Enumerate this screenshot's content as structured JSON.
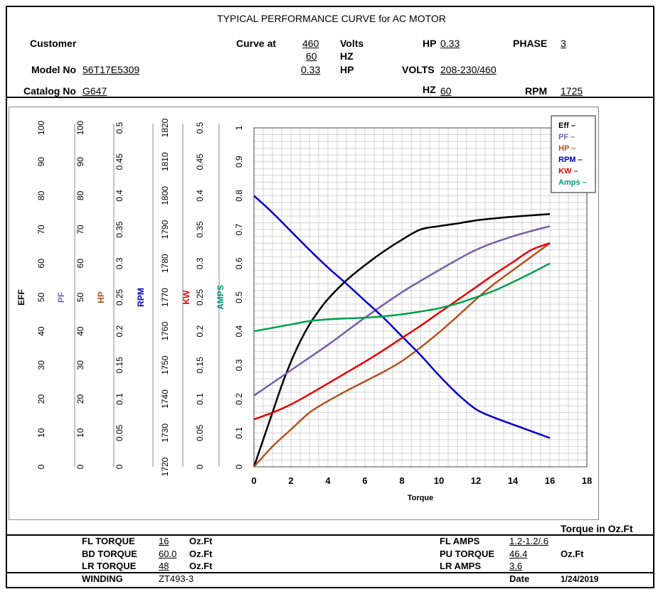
{
  "header": {
    "title": "TYPICAL PERFORMANCE CURVE for AC MOTOR",
    "customer_label": "Customer",
    "curve_at_label": "Curve at",
    "volts_value": "460",
    "volts_label": "Volts",
    "hz_value": "60",
    "hz_label": "HZ",
    "hp_value": "0.33",
    "hp_label": "HP",
    "hp_top_label": "HP",
    "hp_top_value": "0.33",
    "phase_label": "PHASE",
    "phase_value": "3",
    "model_label": "Model No",
    "model_value": "56T17E5309",
    "volts2_label": "VOLTS",
    "volts2_value": "208-230/460",
    "catalog_label": "Catalog No",
    "catalog_value": "G647",
    "hz2_label": "HZ",
    "hz2_value": "60",
    "rpm_label": "RPM",
    "rpm_value": "1725"
  },
  "chart_data": {
    "type": "line",
    "xlabel": "Torque",
    "x_caption": "Torque in Oz.Ft",
    "xlim": [
      0,
      18
    ],
    "x_ticks": [
      "0",
      "2",
      "4",
      "6",
      "8",
      "10",
      "12",
      "14",
      "16",
      "18"
    ],
    "grid": true,
    "legend_position": "top-right",
    "axes": [
      {
        "name": "EFF",
        "color": "#000000",
        "ticks": [
          "0",
          "10",
          "20",
          "30",
          "40",
          "50",
          "60",
          "70",
          "80",
          "90",
          "100"
        ],
        "label_visible": true
      },
      {
        "name": "PF",
        "color": "#7a5ea8",
        "ticks": [
          "0",
          "10",
          "20",
          "30",
          "40",
          "50",
          "60",
          "70",
          "80",
          "90",
          "100"
        ],
        "label_visible": true
      },
      {
        "name": "HP",
        "color": "#b5521b",
        "ticks": [
          "0",
          "0.05",
          "0.1",
          "0.15",
          "0.2",
          "0.25",
          "0.3",
          "0.35",
          "0.4",
          "0.45",
          "0.5"
        ],
        "label_visible": true
      },
      {
        "name": "RPM",
        "color": "#0000cc",
        "ticks": [
          "1720",
          "1730",
          "1740",
          "1750",
          "1760",
          "1770",
          "1780",
          "1790",
          "1800",
          "1810",
          "1820"
        ],
        "label_visible": true
      },
      {
        "name": "KW",
        "color": "#e60000",
        "ticks": [
          "0",
          "0.05",
          "0.1",
          "0.15",
          "0.2",
          "0.25",
          "0.3",
          "0.35",
          "0.4",
          "0.45",
          "0.5"
        ],
        "label_visible": true
      },
      {
        "name": "AMPS",
        "color": "#009977",
        "ticks": [
          "0",
          "0.1",
          "0.2",
          "0.3",
          "0.4",
          "0.5",
          "0.6",
          "0.7",
          "0.8",
          "0.9",
          "1"
        ],
        "label_visible": true
      }
    ],
    "series": [
      {
        "name": "Eff",
        "color": "#000000",
        "x": [
          0,
          0.5,
          1,
          1.5,
          2,
          2.5,
          3,
          3.5,
          4,
          5,
          6,
          7,
          8,
          9,
          10,
          11,
          12,
          13,
          14,
          15,
          16
        ],
        "y": [
          0,
          8,
          16,
          24,
          31,
          37,
          42,
          46,
          49.5,
          55,
          59.5,
          63.5,
          67,
          70,
          71,
          71.8,
          72.7,
          73.3,
          73.8,
          74.2,
          74.6
        ]
      },
      {
        "name": "PF",
        "color": "#7a5ea8",
        "x": [
          0,
          2,
          4,
          6,
          8,
          10,
          12,
          14,
          16
        ],
        "y": [
          21,
          28.5,
          36,
          44,
          51.5,
          58,
          64,
          68,
          71
        ]
      },
      {
        "name": "HP",
        "color": "#b5521b",
        "x": [
          0,
          1,
          2,
          3,
          4,
          5,
          6,
          7,
          8,
          9,
          10,
          11,
          12,
          13,
          14,
          15,
          16
        ],
        "y": [
          0,
          0.03,
          0.055,
          0.08,
          0.097,
          0.112,
          0.126,
          0.14,
          0.156,
          0.176,
          0.198,
          0.222,
          0.247,
          0.27,
          0.29,
          0.31,
          0.33
        ]
      },
      {
        "name": "RPM",
        "color": "#0000cc",
        "x": [
          0,
          1,
          2,
          3,
          4,
          5,
          6,
          7,
          8,
          9,
          10,
          11,
          12,
          13,
          14,
          15,
          16
        ],
        "y": [
          1800,
          1795,
          1789.5,
          1784,
          1778.8,
          1774,
          1769,
          1764,
          1758.5,
          1753,
          1747,
          1741.5,
          1737,
          1734.5,
          1732.5,
          1730.5,
          1728.5
        ]
      },
      {
        "name": "KW",
        "color": "#e60000",
        "x": [
          0,
          1,
          2,
          3,
          4,
          5,
          6,
          7,
          8,
          9,
          10,
          11,
          12,
          13,
          14,
          15,
          16
        ],
        "y": [
          0.07,
          0.08,
          0.092,
          0.107,
          0.123,
          0.139,
          0.155,
          0.172,
          0.19,
          0.208,
          0.227,
          0.246,
          0.265,
          0.284,
          0.302,
          0.32,
          0.33
        ]
      },
      {
        "name": "Amps",
        "color": "#00a04b",
        "x": [
          0,
          1,
          2,
          3,
          4,
          5,
          6,
          7,
          8,
          9,
          10,
          11,
          12,
          13,
          14,
          15,
          16
        ],
        "y": [
          0.4,
          0.41,
          0.42,
          0.43,
          0.435,
          0.438,
          0.44,
          0.444,
          0.45,
          0.458,
          0.468,
          0.482,
          0.5,
          0.52,
          0.545,
          0.572,
          0.6
        ]
      }
    ],
    "legend": [
      {
        "label": "Eff –",
        "color": "#000000"
      },
      {
        "label": "PF –",
        "color": "#7a5ea8"
      },
      {
        "label": "HP –",
        "color": "#b5521b"
      },
      {
        "label": "RPM –",
        "color": "#0000cc"
      },
      {
        "label": "KW –",
        "color": "#e60000"
      },
      {
        "label": "Amps –",
        "color": "#009977"
      }
    ]
  },
  "footer": {
    "fl_torque_label": "FL TORQUE",
    "fl_torque_value": "16",
    "fl_torque_unit": "Oz.Ft",
    "bd_torque_label": "BD TORQUE",
    "bd_torque_value": "60.0",
    "bd_torque_unit": "Oz.Ft",
    "lr_torque_label": "LR TORQUE",
    "lr_torque_value": "48",
    "lr_torque_unit": "Oz.Ft",
    "winding_label": "WINDING",
    "winding_value": "ZT493-3",
    "fl_amps_label": "FL AMPS",
    "fl_amps_value": "1.2-1.2/.6",
    "pu_torque_label": "PU TORQUE",
    "pu_torque_value": "46.4",
    "pu_torque_unit": "Oz.Ft",
    "lr_amps_label": "LR AMPS",
    "lr_amps_value": "3.6",
    "date_label": "Date",
    "date_value": "1/24/2019"
  }
}
